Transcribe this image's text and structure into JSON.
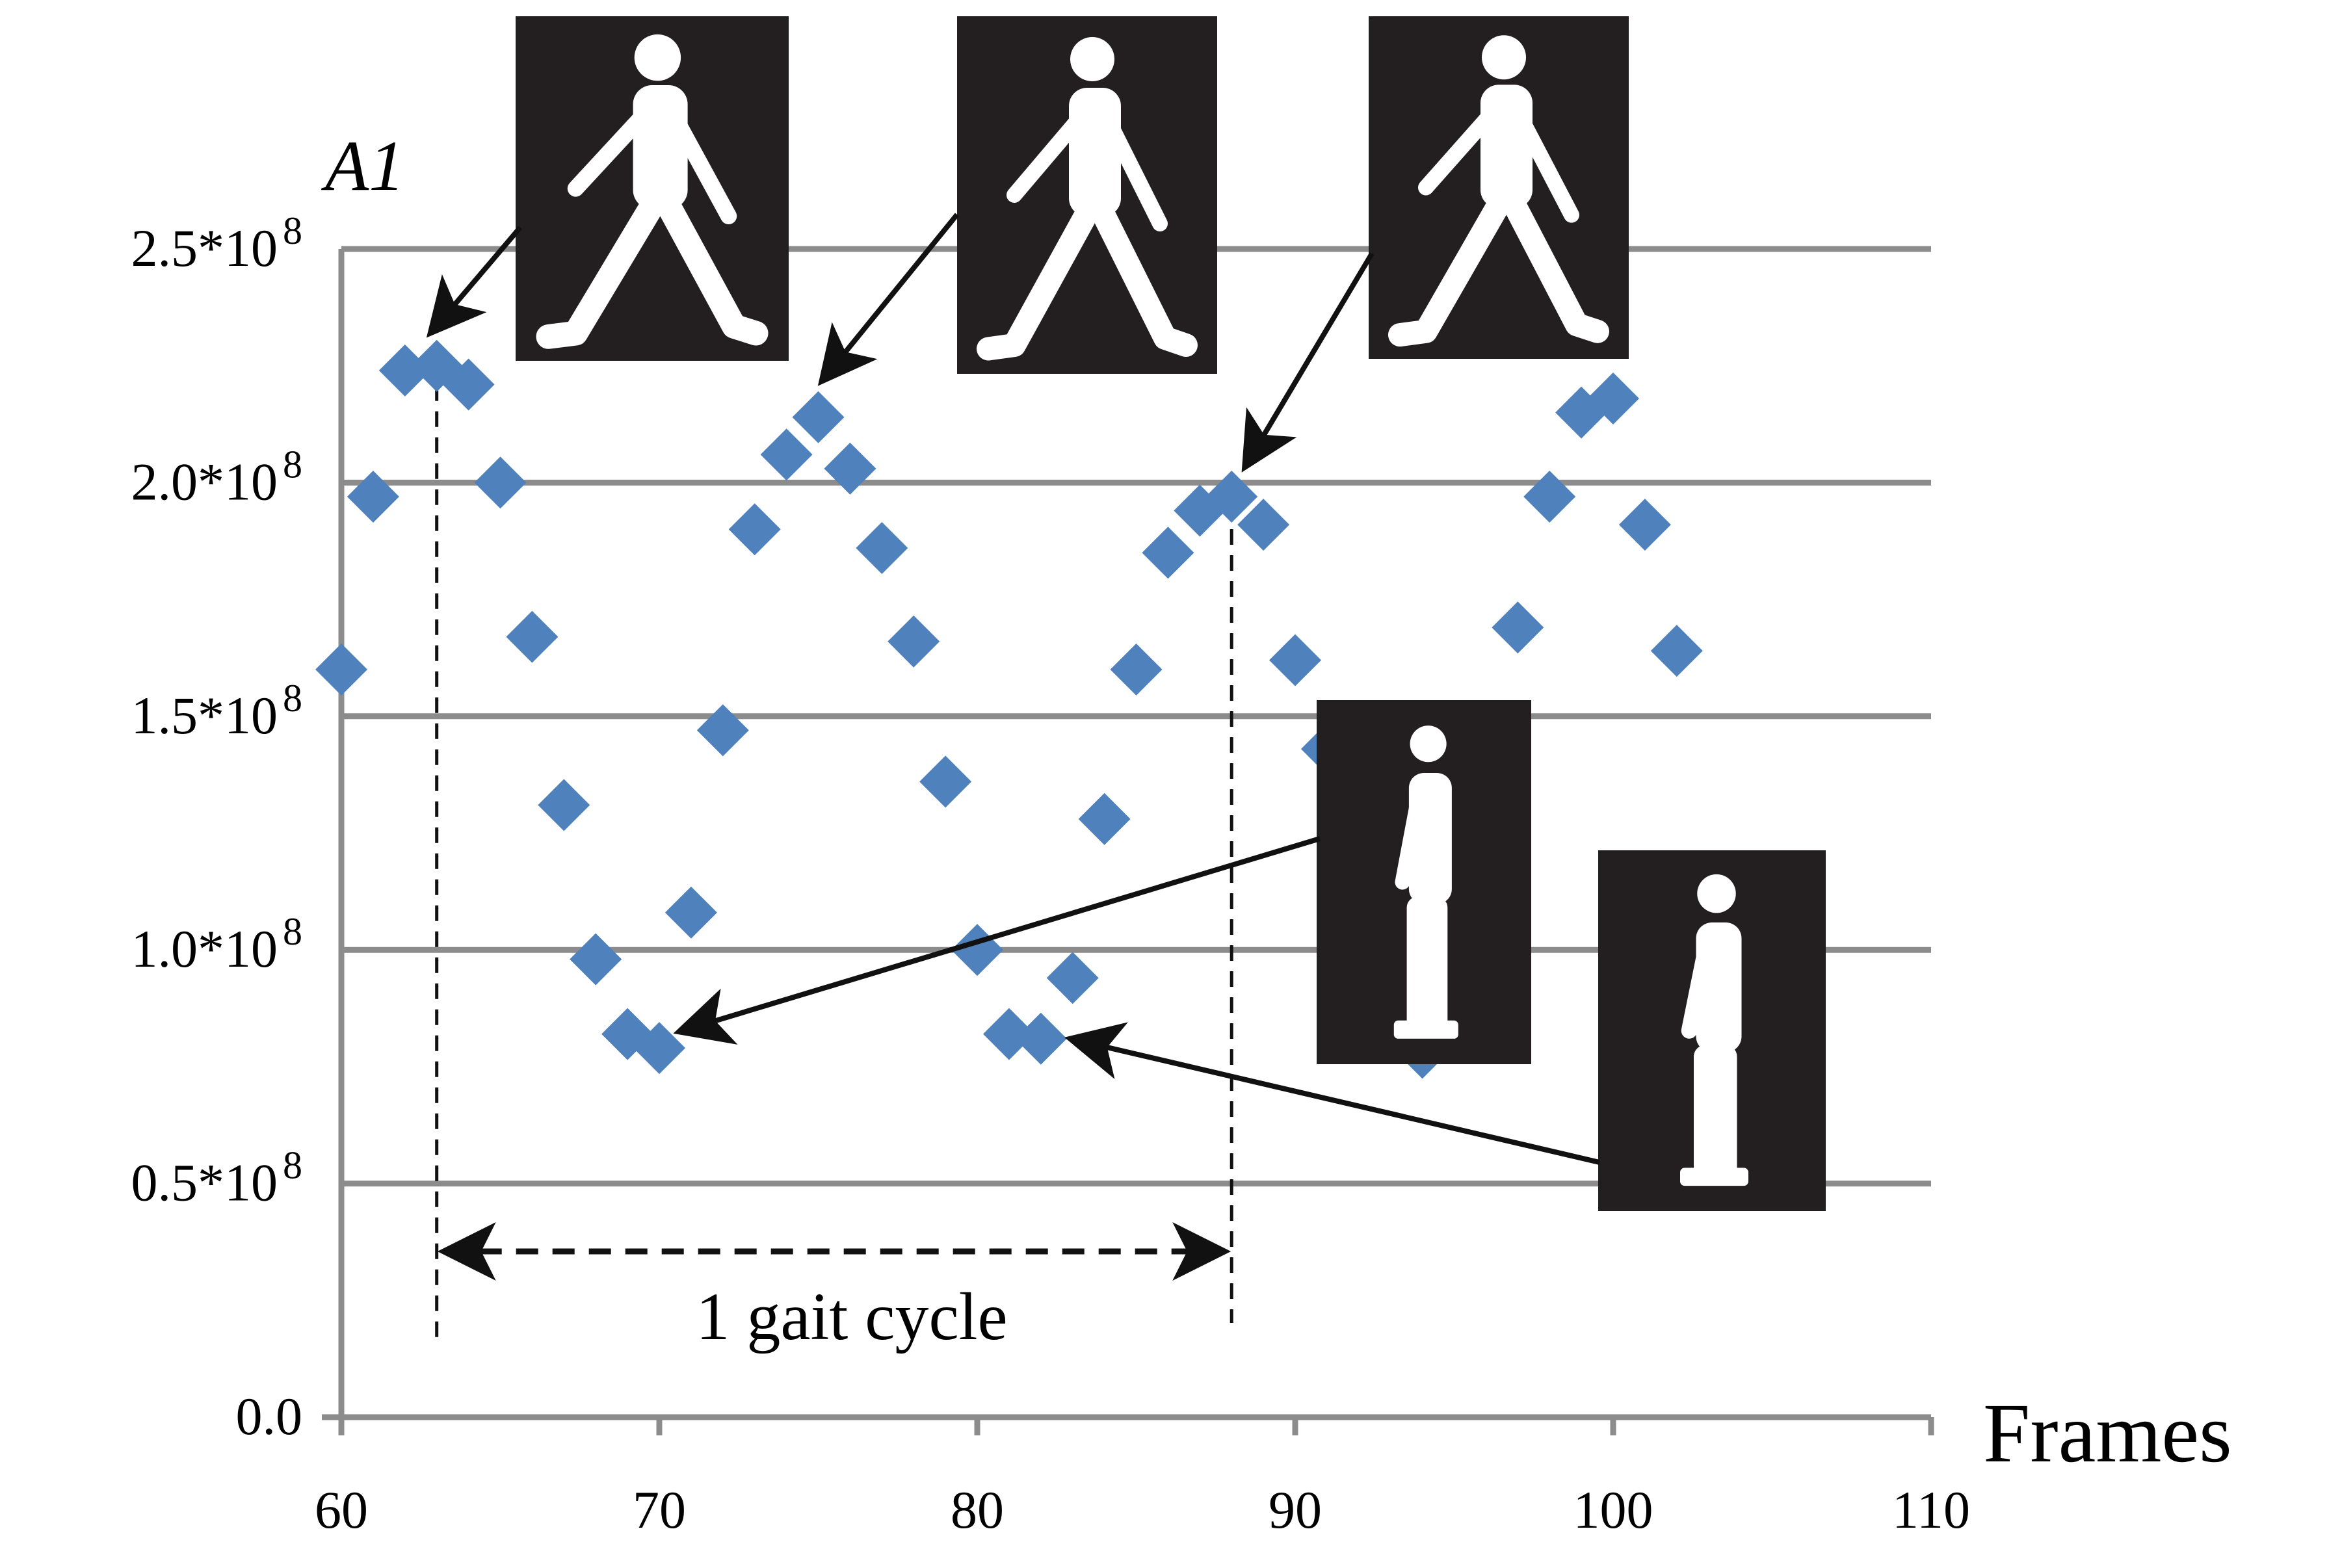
{
  "chart_data": {
    "type": "scatter",
    "xlabel": "Frames",
    "ylabel": "A1",
    "xlim": [
      60,
      110
    ],
    "ylim": [
      0,
      250000000
    ],
    "x_ticks": [
      60,
      70,
      80,
      90,
      100,
      110
    ],
    "x_tick_labels": [
      "60",
      "70",
      "80",
      "90",
      "100",
      "110"
    ],
    "y_ticks": [
      0,
      50000000,
      100000000,
      150000000,
      200000000,
      250000000
    ],
    "y_tick_labels": [
      {
        "base": "0.0",
        "sup": ""
      },
      {
        "base": "0.5*10",
        "sup": "8"
      },
      {
        "base": "1.0*10",
        "sup": "8"
      },
      {
        "base": "1.5*10",
        "sup": "8"
      },
      {
        "base": "2.0*10",
        "sup": "8"
      },
      {
        "base": "2.5*10",
        "sup": "8"
      }
    ],
    "grid": "horizontal",
    "marker": "diamond",
    "marker_color": "#4F81BD",
    "series": [
      {
        "points": [
          [
            60,
            160000000
          ],
          [
            61,
            197000000
          ],
          [
            62,
            224000000
          ],
          [
            63,
            225000000
          ],
          [
            64,
            221000000
          ],
          [
            65,
            200000000
          ],
          [
            66,
            167000000
          ],
          [
            67,
            131000000
          ],
          [
            68,
            98000000
          ],
          [
            69,
            82000000
          ],
          [
            70,
            79000000
          ],
          [
            71,
            108000000
          ],
          [
            72,
            147000000
          ],
          [
            73,
            190000000
          ],
          [
            74,
            206000000
          ],
          [
            75,
            214000000
          ],
          [
            76,
            203000000
          ],
          [
            77,
            186000000
          ],
          [
            78,
            166000000
          ],
          [
            79,
            136000000
          ],
          [
            80,
            100000000
          ],
          [
            81,
            82000000
          ],
          [
            82,
            81000000
          ],
          [
            83,
            94000000
          ],
          [
            84,
            128000000
          ],
          [
            85,
            160000000
          ],
          [
            86,
            185000000
          ],
          [
            87,
            194000000
          ],
          [
            88,
            197000000
          ],
          [
            89,
            191000000
          ],
          [
            90,
            162000000
          ],
          [
            91,
            143000000
          ],
          [
            92,
            116000000
          ],
          [
            93,
            95000000
          ],
          [
            94,
            78000000
          ],
          [
            95,
            105000000
          ],
          [
            96,
            138000000
          ],
          [
            97,
            169000000
          ],
          [
            98,
            197000000
          ],
          [
            99,
            215000000
          ],
          [
            100,
            218000000
          ],
          [
            101,
            191000000
          ],
          [
            102,
            164000000
          ]
        ]
      }
    ],
    "annotations": {
      "gait_cycle_label": "1 gait cycle",
      "gait_cycle_start_x": 63,
      "gait_cycle_end_x": 88
    }
  }
}
